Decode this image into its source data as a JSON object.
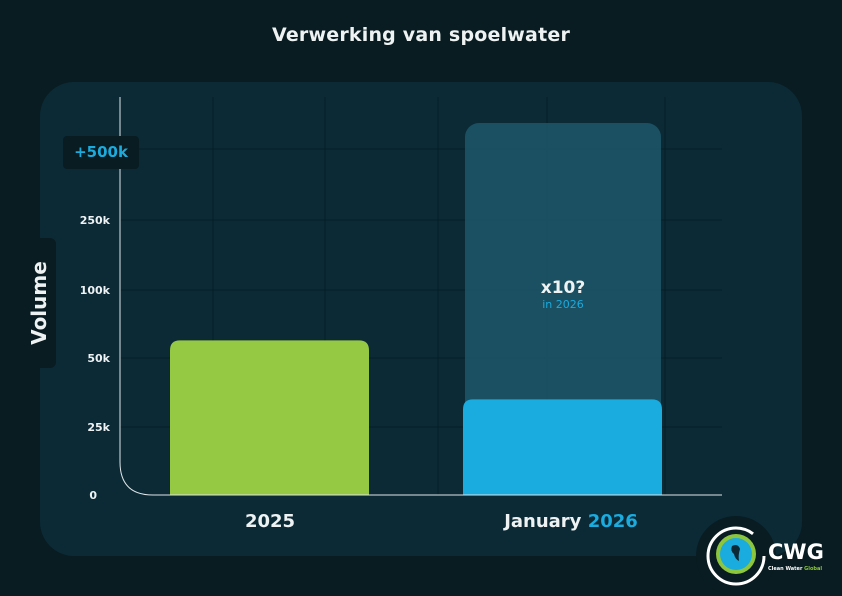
{
  "chart_data": {
    "type": "bar",
    "title": "Verwerking van spoelwater",
    "ylabel": "Volume",
    "xlabel": "",
    "y_ticks": [
      "0",
      "25k",
      "50k",
      "100k",
      "250k",
      "+500k"
    ],
    "y_tick_values": [
      0,
      25000,
      50000,
      100000,
      250000,
      500000
    ],
    "y_scale": "non-linear (evenly spaced ticks)",
    "categories": [
      "2025",
      "January 2026"
    ],
    "category_parts": [
      {
        "main": "2025",
        "accent": ""
      },
      {
        "main": "January",
        "accent": "2026"
      }
    ],
    "values": [
      63000,
      35000
    ],
    "bar_colors": [
      "#95c843",
      "#1aabdf"
    ],
    "projection": {
      "category": "January 2026",
      "value": 600000,
      "label": "x10?",
      "sublabel": "in 2026",
      "color": "#1c5466"
    },
    "grid": true
  },
  "logo": {
    "name": "CWG",
    "tagline_main": "Clean Water ",
    "tagline_accent": "Global"
  }
}
